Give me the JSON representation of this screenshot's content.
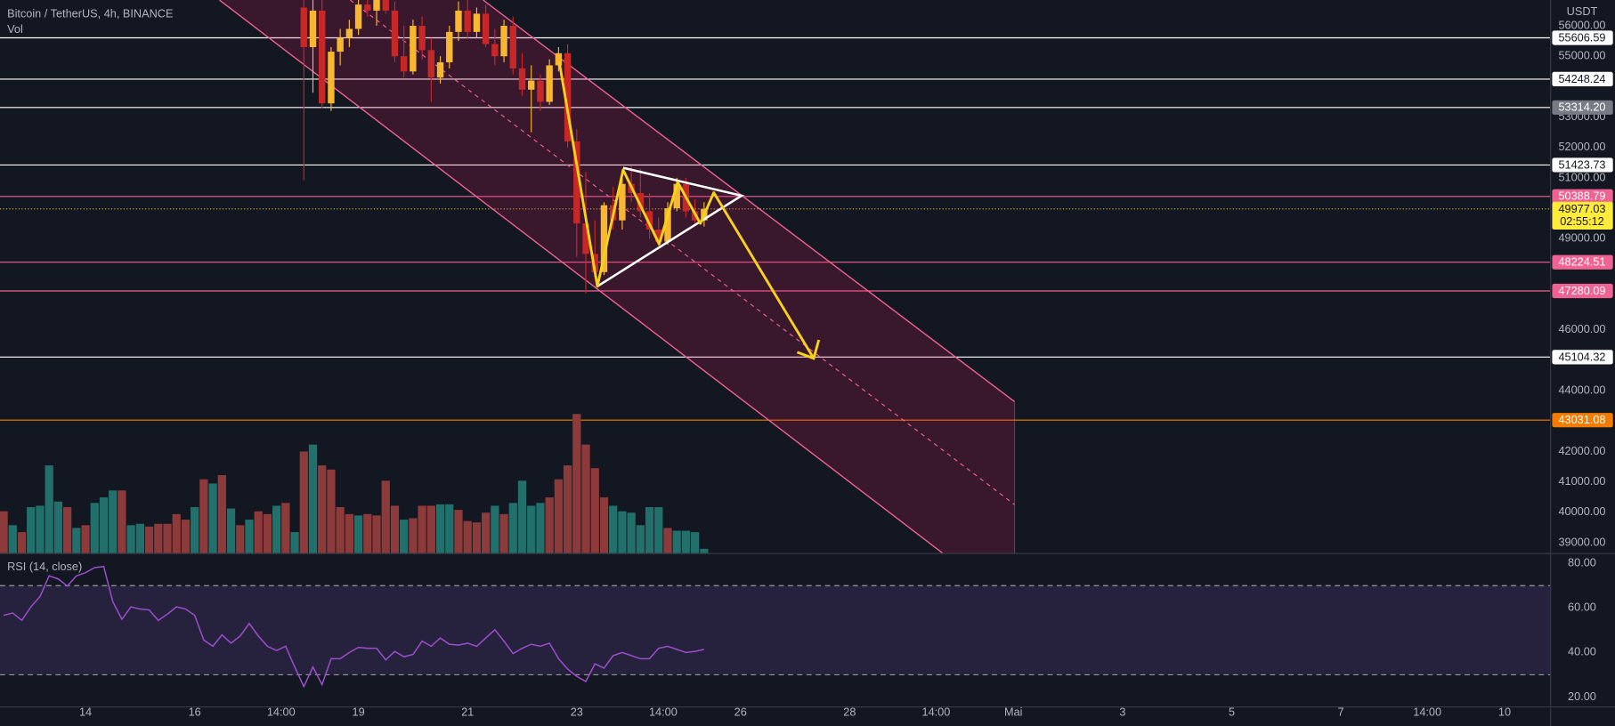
{
  "chart_data": [
    {
      "type": "candlestick",
      "title": "Bitcoin / TetherUS, 4h, BINANCE",
      "currency": "USDT",
      "up_color": "#f7b731",
      "down_color": "#c62828",
      "xlim": [
        -37.6,
        644
      ],
      "ylim": [
        38660,
        56850
      ],
      "xticks": [
        {
          "value": 0,
          "label": "14"
        },
        {
          "value": 48,
          "label": "16"
        },
        {
          "value": 86,
          "label": "14:00"
        },
        {
          "value": 120,
          "label": "19"
        },
        {
          "value": 168,
          "label": "21"
        },
        {
          "value": 216,
          "label": "23"
        },
        {
          "value": 254,
          "label": "14:00"
        },
        {
          "value": 288,
          "label": "26"
        },
        {
          "value": 336,
          "label": "28"
        },
        {
          "value": 374,
          "label": "14:00"
        },
        {
          "value": 408,
          "label": "Mai"
        },
        {
          "value": 456,
          "label": "3"
        },
        {
          "value": 504,
          "label": "5"
        },
        {
          "value": 552,
          "label": "7"
        },
        {
          "value": 590,
          "label": "14:00"
        },
        {
          "value": 624,
          "label": "10"
        }
      ],
      "yticks": [
        {
          "value": 56000,
          "label": "56000.00"
        },
        {
          "value": 55000,
          "label": "55000.00"
        },
        {
          "value": 53000,
          "label": "53000.00"
        },
        {
          "value": 52000,
          "label": "52000.00"
        },
        {
          "value": 51000,
          "label": "51000.00"
        },
        {
          "value": 49000,
          "label": "49000.00"
        },
        {
          "value": 46000,
          "label": "46000.00"
        },
        {
          "value": 44000,
          "label": "44000.00"
        },
        {
          "value": 42000,
          "label": "42000.00"
        },
        {
          "value": 41000,
          "label": "41000.00"
        },
        {
          "value": 40000,
          "label": "40000.00"
        },
        {
          "value": 39000,
          "label": "39000.00"
        }
      ],
      "levels": [
        {
          "value": 55606.59,
          "color": "#ffffff",
          "label_bg": "#ffffff",
          "label_color": "#131722"
        },
        {
          "value": 54248.24,
          "color": "#ffffff",
          "label_bg": "#ffffff",
          "label_color": "#131722"
        },
        {
          "value": {
            "value": 53314.2,
            "label": "53314.20"
          },
          "color": "#ffffff",
          "label_bg": "#787b86",
          "label_color": "#ffffff"
        },
        {
          "value": 51423.73,
          "color": "#ffffff",
          "label_bg": "#ffffff",
          "label_color": "#131722"
        },
        {
          "value": 50388.79,
          "color": "#f06292",
          "label_bg": "#f06292",
          "label_color": "#ffffff"
        },
        {
          "value": 48224.51,
          "color": "#f06292",
          "label_bg": "#f06292",
          "label_color": "#ffffff"
        },
        {
          "value": 47280.09,
          "color": "#f06292",
          "label_bg": "#f06292",
          "label_color": "#ffffff"
        },
        {
          "value": 45104.32,
          "color": "#ffffff",
          "label_bg": "#ffffff",
          "label_color": "#131722"
        },
        {
          "value": 43031.08,
          "color": "#f57c00",
          "label_bg": "#f57c00",
          "label_color": "#ffffff"
        }
      ],
      "last": {
        "value": 49977.03,
        "countdown": "02:55:12",
        "color": "#ffeb3b"
      },
      "x": [
        96,
        100,
        104,
        108,
        112,
        116,
        120,
        124,
        128,
        132,
        136,
        140,
        144,
        148,
        152,
        156,
        160,
        164,
        168,
        172,
        176,
        180,
        184,
        188,
        192,
        196,
        200,
        204,
        208,
        212,
        216,
        220,
        224,
        228,
        232,
        236,
        240,
        244,
        248,
        252,
        256,
        260,
        264,
        268,
        272
      ],
      "open": [
        56600,
        55300,
        56500,
        53450,
        55150,
        55600,
        55900,
        56700,
        56500,
        56900,
        56500,
        55000,
        54500,
        56000,
        55200,
        54300,
        54800,
        55800,
        56500,
        55800,
        56400,
        55400,
        55000,
        56000,
        54600,
        53900,
        54200,
        53500,
        54700,
        55100,
        52200,
        49500,
        48500,
        47900,
        50100,
        49600,
        50800,
        50500,
        49900,
        49300,
        48900,
        50000,
        50800,
        49900,
        49600
      ],
      "high": [
        57300,
        56900,
        57000,
        55300,
        55900,
        56200,
        57000,
        57200,
        57000,
        57300,
        56800,
        56000,
        56200,
        56300,
        55600,
        55000,
        56000,
        56800,
        57000,
        56600,
        56700,
        55900,
        56200,
        56300,
        55100,
        54700,
        54400,
        54900,
        55300,
        55400,
        52600,
        51200,
        49600,
        50200,
        50700,
        51000,
        51400,
        51300,
        50500,
        49700,
        50200,
        51000,
        51000,
        50300,
        50200
      ],
      "low": [
        50920,
        53800,
        53300,
        53200,
        54700,
        55300,
        55700,
        56300,
        56000,
        56400,
        54800,
        54300,
        54400,
        54900,
        53500,
        54100,
        54600,
        55500,
        55600,
        55600,
        55300,
        54700,
        54800,
        54400,
        53700,
        52500,
        53200,
        53400,
        54500,
        52000,
        48400,
        47200,
        47700,
        47800,
        49300,
        49300,
        50200,
        49700,
        49000,
        48700,
        48800,
        49900,
        49700,
        49400,
        49400
      ],
      "close": [
        55300,
        56500,
        53450,
        55150,
        55600,
        55900,
        56700,
        56500,
        56900,
        56500,
        55000,
        54500,
        56000,
        55200,
        54300,
        54800,
        55800,
        56500,
        55800,
        56400,
        55400,
        55000,
        56000,
        54600,
        53900,
        54200,
        53500,
        54700,
        55100,
        52200,
        49500,
        48500,
        47900,
        50100,
        49600,
        50800,
        50500,
        49900,
        49300,
        48900,
        50000,
        50800,
        49900,
        49600,
        49977.03
      ]
    },
    {
      "type": "bar",
      "title": "Vol",
      "up_color": "#22706b",
      "down_color": "#8c3a3a",
      "ylim": [
        0,
        100
      ],
      "x": [
        -36,
        -32,
        -28,
        -24,
        -20,
        -16,
        -12,
        -8,
        -4,
        0,
        4,
        8,
        12,
        16,
        20,
        24,
        28,
        32,
        36,
        40,
        44,
        48,
        52,
        56,
        60,
        64,
        68,
        72,
        76,
        80,
        84,
        88,
        92,
        96,
        100,
        104,
        108,
        112,
        116,
        120,
        124,
        128,
        132,
        136,
        140,
        144,
        148,
        152,
        156,
        160,
        164,
        168,
        172,
        176,
        180,
        184,
        188,
        192,
        196,
        200,
        204,
        208,
        212,
        216,
        220,
        224,
        228,
        232,
        236,
        240,
        244,
        248,
        252,
        256,
        260,
        264,
        268,
        272
      ],
      "values": [
        30,
        20,
        15,
        33,
        34,
        63,
        37,
        33,
        18,
        20,
        36,
        40,
        45,
        45,
        20,
        21,
        19,
        21,
        21,
        28,
        24,
        33,
        53,
        50,
        56,
        32,
        20,
        24,
        30,
        28,
        34,
        36,
        15,
        73,
        78,
        63,
        60,
        33,
        28,
        27,
        28,
        27,
        52,
        34,
        24,
        25,
        34,
        34,
        35,
        35,
        31,
        23,
        22,
        29,
        34,
        28,
        36,
        52,
        34,
        36,
        40,
        53,
        63,
        100,
        78,
        61,
        40,
        34,
        30,
        29,
        20,
        33,
        33,
        18,
        16,
        16,
        15,
        3
      ],
      "directions": [
        "down",
        "up",
        "down",
        "up",
        "up",
        "up",
        "up",
        "down",
        "up",
        "down",
        "up",
        "up",
        "up",
        "down",
        "up",
        "up",
        "down",
        "down",
        "down",
        "down",
        "down",
        "up",
        "down",
        "up",
        "down",
        "up",
        "down",
        "up",
        "down",
        "down",
        "up",
        "down",
        "up",
        "down",
        "up",
        "down",
        "down",
        "down",
        "down",
        "up",
        "down",
        "down",
        "down",
        "down",
        "up",
        "down",
        "down",
        "down",
        "up",
        "up",
        "down",
        "down",
        "down",
        "down",
        "up",
        "down",
        "up",
        "up",
        "up",
        "up",
        "down",
        "down",
        "down",
        "down",
        "down",
        "down",
        "down",
        "up",
        "up",
        "up",
        "up",
        "up",
        "up",
        "down",
        "up",
        "up",
        "up",
        "up"
      ]
    },
    {
      "type": "line",
      "title": "RSI (14, close)",
      "color": "#9c4dcc",
      "band": [
        70,
        30
      ],
      "band_color": "#7e57c2",
      "ylim": [
        15.8,
        84.65
      ],
      "yticks": [
        {
          "value": 80,
          "label": "80.00"
        },
        {
          "value": 60,
          "label": "60.00"
        },
        {
          "value": 40,
          "label": "40.00"
        },
        {
          "value": 20,
          "label": "20.00"
        }
      ],
      "x": [
        -36,
        -32,
        -28,
        -24,
        -20,
        -16,
        -12,
        -8,
        -4,
        0,
        4,
        8,
        12,
        16,
        20,
        24,
        28,
        32,
        36,
        40,
        44,
        48,
        52,
        56,
        60,
        64,
        68,
        72,
        76,
        80,
        84,
        88,
        92,
        96,
        100,
        104,
        108,
        112,
        116,
        120,
        124,
        128,
        132,
        136,
        140,
        144,
        148,
        152,
        156,
        160,
        164,
        168,
        172,
        176,
        180,
        184,
        188,
        192,
        196,
        200,
        204,
        208,
        212,
        216,
        220,
        224,
        228,
        232,
        236,
        240,
        244,
        248,
        252,
        256,
        260,
        264,
        268,
        272
      ],
      "values": [
        56.7,
        57.7,
        54.4,
        60.5,
        65.1,
        74.4,
        73.0,
        69.8,
        74.4,
        75.8,
        78.1,
        78.6,
        62.8,
        54.9,
        60.5,
        59.5,
        59.1,
        54.4,
        57.2,
        60.5,
        59.5,
        56.7,
        45.6,
        42.8,
        47.9,
        44.2,
        47.4,
        53.0,
        47.4,
        42.8,
        40.9,
        42.8,
        33.5,
        24.7,
        33.5,
        25.6,
        37.2,
        37.2,
        40.0,
        42.3,
        41.9,
        41.9,
        36.7,
        40.5,
        38.1,
        39.1,
        45.1,
        42.8,
        46.5,
        43.7,
        43.3,
        44.2,
        42.8,
        46.5,
        50.2,
        45.1,
        39.5,
        41.9,
        43.7,
        42.8,
        44.2,
        37.2,
        32.6,
        29.3,
        27.0,
        34.9,
        33.0,
        38.6,
        40.0,
        38.6,
        37.2,
        37.2,
        41.9,
        42.8,
        41.4,
        40.0,
        40.5,
        41.4
      ]
    }
  ]
}
